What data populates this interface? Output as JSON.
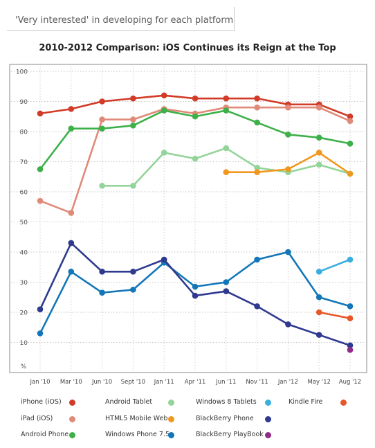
{
  "subtitle": "'Very interested' in developing for each platform",
  "chart_data": {
    "type": "line",
    "title": "2010-2012 Comparison: iOS Continues its Reign at the Top",
    "xlabel": "",
    "ylabel": "%",
    "ylim": [
      0,
      100
    ],
    "yticks": [
      10,
      20,
      30,
      40,
      50,
      60,
      70,
      80,
      90,
      100
    ],
    "categories": [
      "Jan '10",
      "Mar '10",
      "Jun '10",
      "Sept '10",
      "Jan '11",
      "Apr '11",
      "Jun '11",
      "Nov '11",
      "Jan '12",
      "May '12",
      "Aug '12"
    ],
    "grid": "horizontal",
    "legend_position": "bottom",
    "series": [
      {
        "name": "iPhone (iOS)",
        "color": "#d13b27",
        "values": [
          86,
          87.5,
          90,
          91,
          92,
          91,
          91,
          91,
          89,
          89,
          85
        ]
      },
      {
        "name": "iPad (iOS)",
        "color": "#e08a78",
        "values": [
          57,
          53,
          84,
          84,
          87.5,
          86,
          88,
          88,
          88,
          88,
          83.5
        ]
      },
      {
        "name": "Android Phone",
        "color": "#3db04a",
        "values": [
          67.5,
          81,
          81,
          82,
          87,
          85,
          87,
          83,
          79,
          78,
          76
        ]
      },
      {
        "name": "Android Tablet",
        "color": "#93d49a",
        "values": [
          null,
          null,
          62,
          62,
          73,
          71,
          74.5,
          68,
          66.5,
          69,
          66
        ]
      },
      {
        "name": "HTML5 Mobile Web",
        "color": "#f0981e",
        "values": [
          null,
          null,
          null,
          null,
          null,
          null,
          66.5,
          66.5,
          67.5,
          73,
          66
        ]
      },
      {
        "name": "Windows Phone 7.5",
        "color": "#1276b8",
        "values": [
          13,
          33.5,
          26.5,
          27.5,
          36.5,
          28.5,
          30,
          37.5,
          40,
          25,
          22
        ]
      },
      {
        "name": "Windows 8 Tablets",
        "color": "#3aaee0",
        "values": [
          null,
          null,
          null,
          null,
          null,
          null,
          null,
          null,
          null,
          33.5,
          37.5
        ]
      },
      {
        "name": "BlackBerry Phone",
        "color": "#2f3a8f",
        "values": [
          21,
          43,
          33.5,
          33.5,
          37.5,
          25.5,
          27,
          22,
          16,
          12.5,
          9
        ]
      },
      {
        "name": "Kindle Fire",
        "color": "#e8572a",
        "values": [
          null,
          null,
          null,
          null,
          null,
          null,
          null,
          null,
          null,
          20,
          18
        ]
      },
      {
        "name": "BlackBerry PlayBook",
        "color": "#8e2c86",
        "values": [
          null,
          null,
          null,
          null,
          null,
          null,
          null,
          null,
          null,
          null,
          7.5
        ]
      }
    ]
  }
}
